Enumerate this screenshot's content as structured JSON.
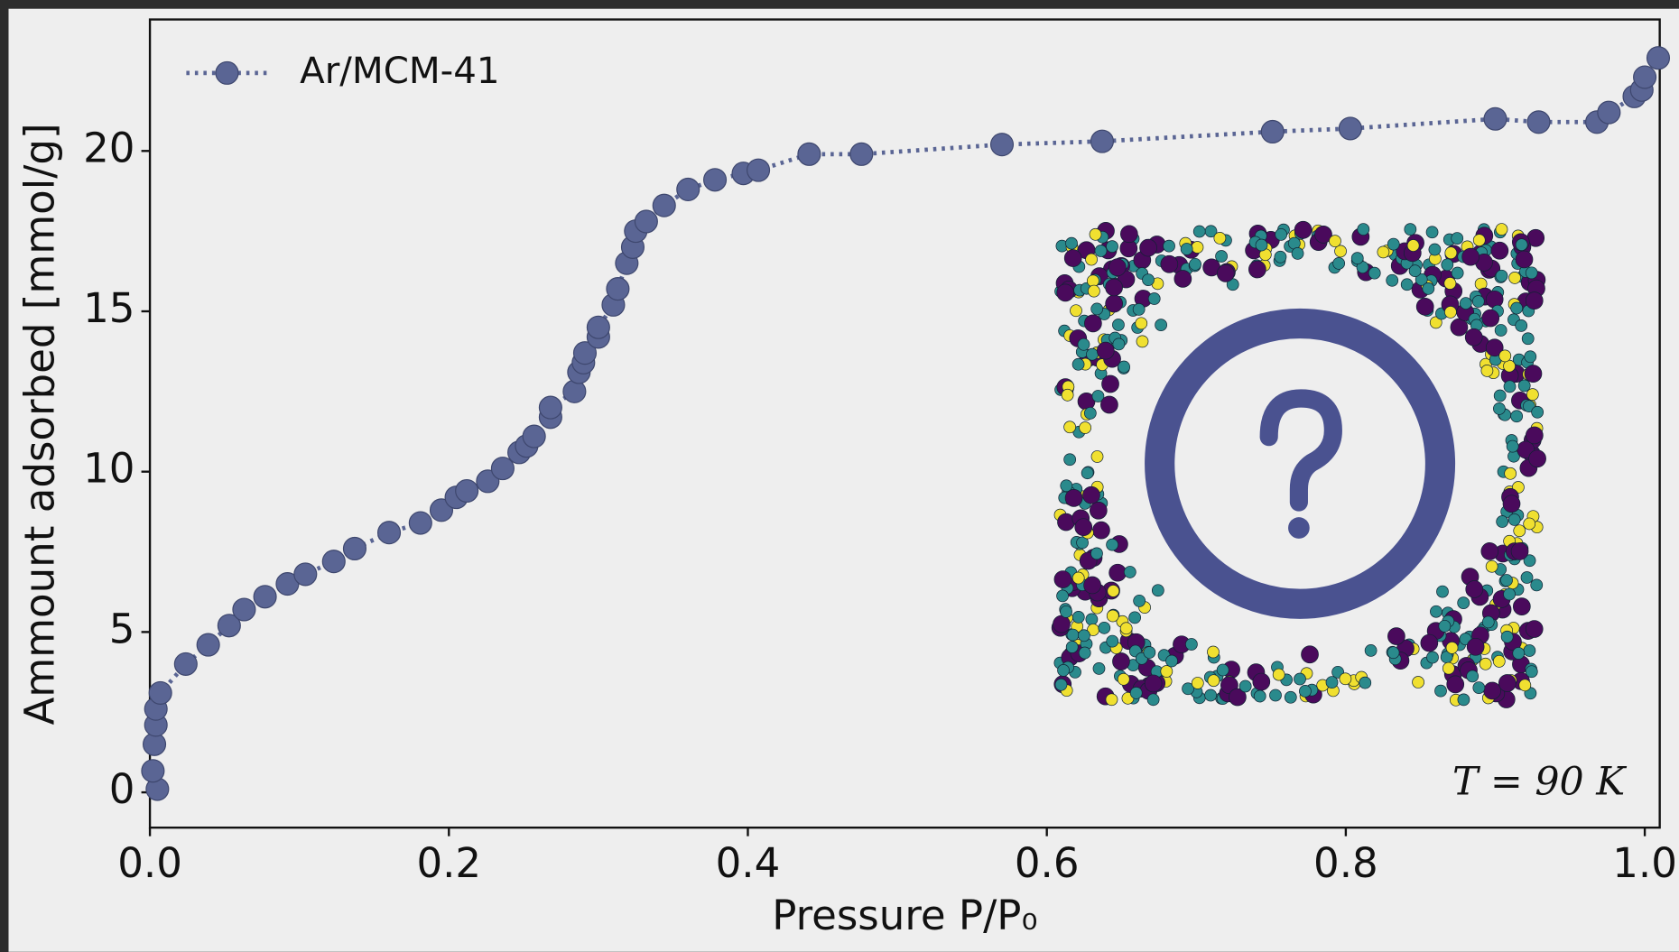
{
  "chart_data": {
    "type": "line",
    "xlabel": "Pressure  P/P₀",
    "ylabel": "Ammount adsorbed [mmol/g]",
    "annotation": "T = 90 K",
    "legend": "upper left",
    "xlim": [
      0,
      1.01
    ],
    "ylim": [
      -1.1,
      24.1
    ],
    "xticks": [
      {
        "value": 0,
        "label": "0.0"
      },
      0.2,
      0.4,
      0.6,
      0.8,
      {
        "value": 1,
        "label": "1.0"
      }
    ],
    "yticks": [
      0,
      5,
      10,
      15,
      20
    ],
    "series": [
      {
        "name": "Ar/MCM-41",
        "color": "#5a6594",
        "x": [
          0.005,
          0.002,
          0.003,
          0.004,
          0.004,
          0.007,
          0.024,
          0.039,
          0.053,
          0.063,
          0.077,
          0.092,
          0.104,
          0.123,
          0.137,
          0.16,
          0.181,
          0.195,
          0.205,
          0.212,
          0.226,
          0.236,
          0.247,
          0.252,
          0.257,
          0.268,
          0.268,
          0.284,
          0.287,
          0.29,
          0.291,
          0.3,
          0.3,
          0.31,
          0.313,
          0.319,
          0.323,
          0.325,
          0.332,
          0.344,
          0.36,
          0.378,
          0.397,
          0.407,
          0.441,
          0.476,
          0.57,
          0.637,
          0.751,
          0.803,
          0.9,
          0.929,
          0.968,
          0.976,
          0.993,
          0.998,
          1.0,
          1.009
        ],
        "values": [
          0.1,
          0.67,
          1.5,
          2.1,
          2.6,
          3.1,
          4.0,
          4.6,
          5.2,
          5.7,
          6.1,
          6.5,
          6.8,
          7.2,
          7.6,
          8.1,
          8.4,
          8.8,
          9.2,
          9.4,
          9.7,
          10.1,
          10.6,
          10.8,
          11.1,
          11.7,
          12.0,
          12.5,
          13.1,
          13.4,
          13.7,
          14.2,
          14.5,
          15.2,
          15.7,
          16.5,
          17.0,
          17.5,
          17.8,
          18.3,
          18.8,
          19.1,
          19.3,
          19.4,
          19.9,
          19.9,
          20.2,
          20.3,
          20.6,
          20.7,
          21.0,
          20.9,
          20.9,
          21.2,
          21.7,
          21.9,
          22.3,
          22.9
        ]
      }
    ]
  }
}
